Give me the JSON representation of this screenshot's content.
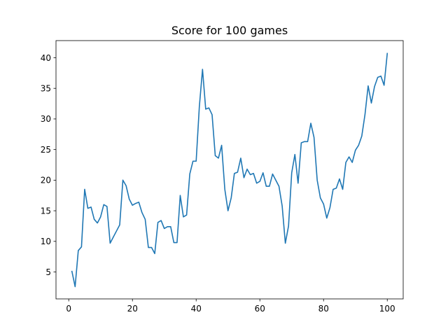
{
  "chart_data": {
    "type": "line",
    "title": "Score for 100 games",
    "xlabel": "",
    "ylabel": "",
    "xlim": [
      -4,
      105
    ],
    "ylim": [
      0.6,
      42.8
    ],
    "xticks": [
      0,
      20,
      40,
      60,
      80,
      100
    ],
    "yticks": [
      5,
      10,
      15,
      20,
      25,
      30,
      35,
      40
    ],
    "grid": false,
    "line_color": "#1f77b4",
    "series": [
      {
        "x": [
          1,
          2,
          3,
          4,
          5,
          6,
          7,
          8,
          9,
          10,
          11,
          12,
          13,
          14,
          15,
          16,
          17,
          18,
          19,
          20,
          21,
          22,
          23,
          24,
          25,
          26,
          27,
          28,
          29,
          30,
          31,
          32,
          33,
          34,
          35,
          36,
          37,
          38,
          39,
          40,
          41,
          42,
          43,
          44,
          45,
          46,
          47,
          48,
          49,
          50,
          51,
          52,
          53,
          54,
          55,
          56,
          57,
          58,
          59,
          60,
          61,
          62,
          63,
          64,
          65,
          66,
          67,
          68,
          69,
          70,
          71,
          72,
          73,
          74,
          75,
          76,
          77,
          78,
          79,
          80,
          81,
          82,
          83,
          84,
          85,
          86,
          87,
          88,
          89,
          90,
          91,
          92,
          93,
          94,
          95,
          96,
          97,
          98,
          99,
          100
        ],
        "values": [
          5.1,
          2.6,
          8.5,
          9.1,
          18.5,
          15.4,
          15.6,
          13.6,
          13.0,
          14.0,
          16.0,
          15.7,
          9.7,
          10.7,
          11.7,
          12.7,
          20.0,
          19.1,
          16.9,
          15.9,
          16.2,
          16.4,
          14.7,
          13.6,
          9.0,
          9.0,
          8.0,
          13.1,
          13.4,
          12.1,
          12.4,
          12.4,
          9.8,
          9.8,
          17.5,
          14.0,
          14.3,
          21.0,
          23.1,
          23.1,
          32.0,
          38.1,
          31.6,
          31.8,
          30.7,
          24.0,
          23.6,
          25.7,
          18.5,
          15.0,
          17.1,
          21.1,
          21.3,
          23.6,
          20.4,
          21.8,
          20.9,
          21.1,
          19.5,
          19.8,
          21.2,
          19.0,
          19.0,
          21.0,
          20.0,
          19.0,
          15.8,
          9.7,
          12.5,
          21.2,
          24.2,
          19.5,
          26.1,
          26.3,
          26.3,
          29.3,
          27.0,
          20.0,
          17.1,
          16.1,
          13.8,
          15.5,
          18.5,
          18.7,
          20.2,
          18.5,
          22.9,
          23.8,
          22.9,
          24.9,
          25.7,
          27.2,
          30.7,
          35.4,
          32.6,
          35.3,
          36.8,
          37.0,
          35.5,
          40.7
        ]
      }
    ]
  }
}
